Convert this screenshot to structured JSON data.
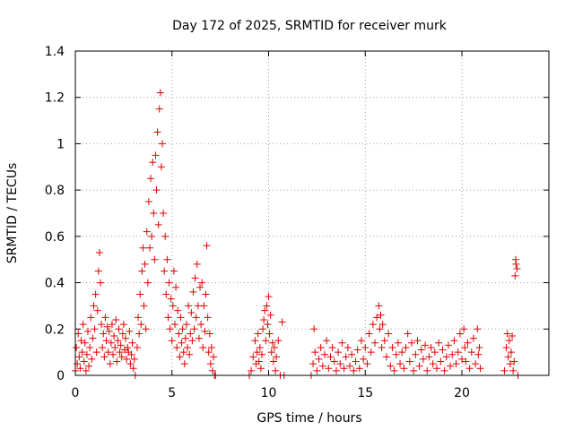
{
  "chart_data": {
    "type": "scatter",
    "title": "Day 172 of 2025, SRMTID for receiver murk",
    "xlabel": "GPS time / hours",
    "ylabel": "SRMTID / TECUs",
    "xlim": [
      0,
      24.5
    ],
    "ylim": [
      0,
      1.4
    ],
    "xticks": [
      0,
      5,
      10,
      15,
      20
    ],
    "xtick_labels": [
      "0",
      "5",
      "10",
      "15",
      "20"
    ],
    "yticks": [
      0,
      0.2,
      0.4,
      0.6,
      0.8,
      1,
      1.2,
      1.4
    ],
    "ytick_labels": [
      "0",
      "0.2",
      "0.4",
      "0.6",
      "0.8",
      "1",
      "1.2",
      "1.4"
    ],
    "grid": true,
    "marker": "+",
    "color": "#e00000",
    "series": [
      {
        "name": "SRMTID",
        "points": [
          [
            0.0,
            0.02
          ],
          [
            0.05,
            0.12
          ],
          [
            0.1,
            0.05
          ],
          [
            0.15,
            0.18
          ],
          [
            0.2,
            0.08
          ],
          [
            0.25,
            0.03
          ],
          [
            0.3,
            0.15
          ],
          [
            0.35,
            0.1
          ],
          [
            0.4,
            0.22
          ],
          [
            0.45,
            0.06
          ],
          [
            0.5,
            0.14
          ],
          [
            0.55,
            0.02
          ],
          [
            0.6,
            0.09
          ],
          [
            0.65,
            0.19
          ],
          [
            0.7,
            0.04
          ],
          [
            0.75,
            0.12
          ],
          [
            0.8,
            0.25
          ],
          [
            0.85,
            0.07
          ],
          [
            0.9,
            0.16
          ],
          [
            0.95,
            0.3
          ],
          [
            1.0,
            0.2
          ],
          [
            1.05,
            0.35
          ],
          [
            1.1,
            0.1
          ],
          [
            1.15,
            0.28
          ],
          [
            1.2,
            0.45
          ],
          [
            1.25,
            0.53
          ],
          [
            1.3,
            0.4
          ],
          [
            1.35,
            0.22
          ],
          [
            1.4,
            0.12
          ],
          [
            1.45,
            0.18
          ],
          [
            1.5,
            0.08
          ],
          [
            1.55,
            0.25
          ],
          [
            1.6,
            0.15
          ],
          [
            1.65,
            0.21
          ],
          [
            1.7,
            0.1
          ],
          [
            1.75,
            0.19
          ],
          [
            1.8,
            0.05
          ],
          [
            1.85,
            0.14
          ],
          [
            1.9,
            0.22
          ],
          [
            1.95,
            0.09
          ],
          [
            2.0,
            0.17
          ],
          [
            2.05,
            0.12
          ],
          [
            2.1,
            0.24
          ],
          [
            2.15,
            0.06
          ],
          [
            2.2,
            0.15
          ],
          [
            2.25,
            0.2
          ],
          [
            2.3,
            0.1
          ],
          [
            2.35,
            0.13
          ],
          [
            2.4,
            0.08
          ],
          [
            2.45,
            0.18
          ],
          [
            2.5,
            0.22
          ],
          [
            2.55,
            0.11
          ],
          [
            2.6,
            0.16
          ],
          [
            2.65,
            0.07
          ],
          [
            2.7,
            0.12
          ],
          [
            2.75,
            0.1
          ],
          [
            2.8,
            0.19
          ],
          [
            2.85,
            0.05
          ],
          [
            2.9,
            0.09
          ],
          [
            2.95,
            0.14
          ],
          [
            3.0,
            0.03
          ],
          [
            3.05,
            0.07
          ],
          [
            3.1,
            0.0
          ],
          [
            3.2,
            0.12
          ],
          [
            3.25,
            0.25
          ],
          [
            3.3,
            0.18
          ],
          [
            3.35,
            0.35
          ],
          [
            3.4,
            0.22
          ],
          [
            3.45,
            0.45
          ],
          [
            3.5,
            0.55
          ],
          [
            3.55,
            0.3
          ],
          [
            3.6,
            0.48
          ],
          [
            3.65,
            0.2
          ],
          [
            3.7,
            0.62
          ],
          [
            3.75,
            0.4
          ],
          [
            3.8,
            0.75
          ],
          [
            3.85,
            0.55
          ],
          [
            3.9,
            0.85
          ],
          [
            3.95,
            0.6
          ],
          [
            4.0,
            0.92
          ],
          [
            4.05,
            0.7
          ],
          [
            4.1,
            0.5
          ],
          [
            4.15,
            0.95
          ],
          [
            4.2,
            0.8
          ],
          [
            4.25,
            1.05
          ],
          [
            4.3,
            0.65
          ],
          [
            4.35,
            1.15
          ],
          [
            4.4,
            1.22
          ],
          [
            4.45,
            0.9
          ],
          [
            4.5,
            1.0
          ],
          [
            4.55,
            0.7
          ],
          [
            4.6,
            0.45
          ],
          [
            4.65,
            0.6
          ],
          [
            4.7,
            0.35
          ],
          [
            4.75,
            0.5
          ],
          [
            4.8,
            0.25
          ],
          [
            4.85,
            0.4
          ],
          [
            4.9,
            0.2
          ],
          [
            4.95,
            0.33
          ],
          [
            5.0,
            0.15
          ],
          [
            5.05,
            0.3
          ],
          [
            5.1,
            0.45
          ],
          [
            5.15,
            0.22
          ],
          [
            5.2,
            0.38
          ],
          [
            5.25,
            0.12
          ],
          [
            5.3,
            0.28
          ],
          [
            5.35,
            0.18
          ],
          [
            5.4,
            0.08
          ],
          [
            5.45,
            0.25
          ],
          [
            5.5,
            0.14
          ],
          [
            5.55,
            0.2
          ],
          [
            5.6,
            0.1
          ],
          [
            5.65,
            0.05
          ],
          [
            5.7,
            0.16
          ],
          [
            5.75,
            0.22
          ],
          [
            5.8,
            0.12
          ],
          [
            5.85,
            0.3
          ],
          [
            5.9,
            0.09
          ],
          [
            5.95,
            0.18
          ],
          [
            6.0,
            0.27
          ],
          [
            6.05,
            0.15
          ],
          [
            6.1,
            0.36
          ],
          [
            6.15,
            0.2
          ],
          [
            6.2,
            0.42
          ],
          [
            6.25,
            0.25
          ],
          [
            6.3,
            0.48
          ],
          [
            6.35,
            0.3
          ],
          [
            6.4,
            0.16
          ],
          [
            6.45,
            0.38
          ],
          [
            6.5,
            0.22
          ],
          [
            6.55,
            0.4
          ],
          [
            6.6,
            0.12
          ],
          [
            6.65,
            0.3
          ],
          [
            6.7,
            0.19
          ],
          [
            6.75,
            0.35
          ],
          [
            6.8,
            0.56
          ],
          [
            6.85,
            0.25
          ],
          [
            6.9,
            0.1
          ],
          [
            6.95,
            0.18
          ],
          [
            7.0,
            0.05
          ],
          [
            7.05,
            0.12
          ],
          [
            7.1,
            0.02
          ],
          [
            7.15,
            0.08
          ],
          [
            7.2,
            0.0
          ],
          [
            7.25,
            0.0
          ],
          [
            9.0,
            0.0
          ],
          [
            9.1,
            0.02
          ],
          [
            9.2,
            0.08
          ],
          [
            9.3,
            0.15
          ],
          [
            9.35,
            0.05
          ],
          [
            9.4,
            0.1
          ],
          [
            9.45,
            0.18
          ],
          [
            9.5,
            0.06
          ],
          [
            9.55,
            0.12
          ],
          [
            9.6,
            0.03
          ],
          [
            9.65,
            0.09
          ],
          [
            9.7,
            0.2
          ],
          [
            9.75,
            0.24
          ],
          [
            9.8,
            0.28
          ],
          [
            9.85,
            0.15
          ],
          [
            9.9,
            0.3
          ],
          [
            9.95,
            0.22
          ],
          [
            10.0,
            0.34
          ],
          [
            10.05,
            0.18
          ],
          [
            10.1,
            0.26
          ],
          [
            10.15,
            0.1
          ],
          [
            10.2,
            0.14
          ],
          [
            10.25,
            0.06
          ],
          [
            10.3,
            0.12
          ],
          [
            10.35,
            0.02
          ],
          [
            10.4,
            0.08
          ],
          [
            10.5,
            0.15
          ],
          [
            10.6,
            0.0
          ],
          [
            10.7,
            0.23
          ],
          [
            10.8,
            0.0
          ],
          [
            12.2,
            0.0
          ],
          [
            12.3,
            0.05
          ],
          [
            12.35,
            0.2
          ],
          [
            12.4,
            0.1
          ],
          [
            12.5,
            0.02
          ],
          [
            12.6,
            0.07
          ],
          [
            12.7,
            0.12
          ],
          [
            12.8,
            0.04
          ],
          [
            12.9,
            0.09
          ],
          [
            13.0,
            0.15
          ],
          [
            13.1,
            0.03
          ],
          [
            13.2,
            0.08
          ],
          [
            13.3,
            0.12
          ],
          [
            13.4,
            0.06
          ],
          [
            13.5,
            0.02
          ],
          [
            13.6,
            0.1
          ],
          [
            13.7,
            0.05
          ],
          [
            13.8,
            0.14
          ],
          [
            13.9,
            0.03
          ],
          [
            14.0,
            0.08
          ],
          [
            14.1,
            0.12
          ],
          [
            14.2,
            0.04
          ],
          [
            14.3,
            0.09
          ],
          [
            14.4,
            0.02
          ],
          [
            14.5,
            0.06
          ],
          [
            14.6,
            0.11
          ],
          [
            14.7,
            0.03
          ],
          [
            14.8,
            0.15
          ],
          [
            14.9,
            0.07
          ],
          [
            15.0,
            0.12
          ],
          [
            15.1,
            0.05
          ],
          [
            15.2,
            0.18
          ],
          [
            15.3,
            0.1
          ],
          [
            15.4,
            0.22
          ],
          [
            15.5,
            0.14
          ],
          [
            15.6,
            0.25
          ],
          [
            15.7,
            0.3
          ],
          [
            15.75,
            0.2
          ],
          [
            15.8,
            0.26
          ],
          [
            15.85,
            0.12
          ],
          [
            15.9,
            0.22
          ],
          [
            16.0,
            0.15
          ],
          [
            16.1,
            0.08
          ],
          [
            16.2,
            0.18
          ],
          [
            16.3,
            0.04
          ],
          [
            16.4,
            0.12
          ],
          [
            16.5,
            0.02
          ],
          [
            16.6,
            0.09
          ],
          [
            16.7,
            0.14
          ],
          [
            16.8,
            0.05
          ],
          [
            16.9,
            0.1
          ],
          [
            17.0,
            0.03
          ],
          [
            17.1,
            0.12
          ],
          [
            17.2,
            0.18
          ],
          [
            17.3,
            0.06
          ],
          [
            17.4,
            0.14
          ],
          [
            17.5,
            0.02
          ],
          [
            17.6,
            0.09
          ],
          [
            17.7,
            0.15
          ],
          [
            17.8,
            0.04
          ],
          [
            17.9,
            0.11
          ],
          [
            18.0,
            0.07
          ],
          [
            18.1,
            0.13
          ],
          [
            18.2,
            0.02
          ],
          [
            18.3,
            0.08
          ],
          [
            18.4,
            0.12
          ],
          [
            18.5,
            0.05
          ],
          [
            18.6,
            0.1
          ],
          [
            18.7,
            0.03
          ],
          [
            18.8,
            0.14
          ],
          [
            18.9,
            0.06
          ],
          [
            19.0,
            0.11
          ],
          [
            19.1,
            0.02
          ],
          [
            19.2,
            0.08
          ],
          [
            19.3,
            0.13
          ],
          [
            19.4,
            0.04
          ],
          [
            19.5,
            0.09
          ],
          [
            19.6,
            0.15
          ],
          [
            19.7,
            0.05
          ],
          [
            19.8,
            0.1
          ],
          [
            19.9,
            0.18
          ],
          [
            20.0,
            0.07
          ],
          [
            20.1,
            0.2
          ],
          [
            20.15,
            0.12
          ],
          [
            20.2,
            0.06
          ],
          [
            20.3,
            0.14
          ],
          [
            20.4,
            0.03
          ],
          [
            20.5,
            0.1
          ],
          [
            20.6,
            0.16
          ],
          [
            20.7,
            0.05
          ],
          [
            20.8,
            0.2
          ],
          [
            20.85,
            0.09
          ],
          [
            20.9,
            0.12
          ],
          [
            20.95,
            0.03
          ],
          [
            22.2,
            0.02
          ],
          [
            22.3,
            0.12
          ],
          [
            22.35,
            0.18
          ],
          [
            22.4,
            0.08
          ],
          [
            22.45,
            0.15
          ],
          [
            22.5,
            0.05
          ],
          [
            22.55,
            0.1
          ],
          [
            22.6,
            0.17
          ],
          [
            22.65,
            0.02
          ],
          [
            22.7,
            0.06
          ],
          [
            22.75,
            0.43
          ],
          [
            22.78,
            0.5
          ],
          [
            22.8,
            0.48
          ],
          [
            22.85,
            0.46
          ],
          [
            22.9,
            0.0
          ]
        ]
      }
    ]
  }
}
